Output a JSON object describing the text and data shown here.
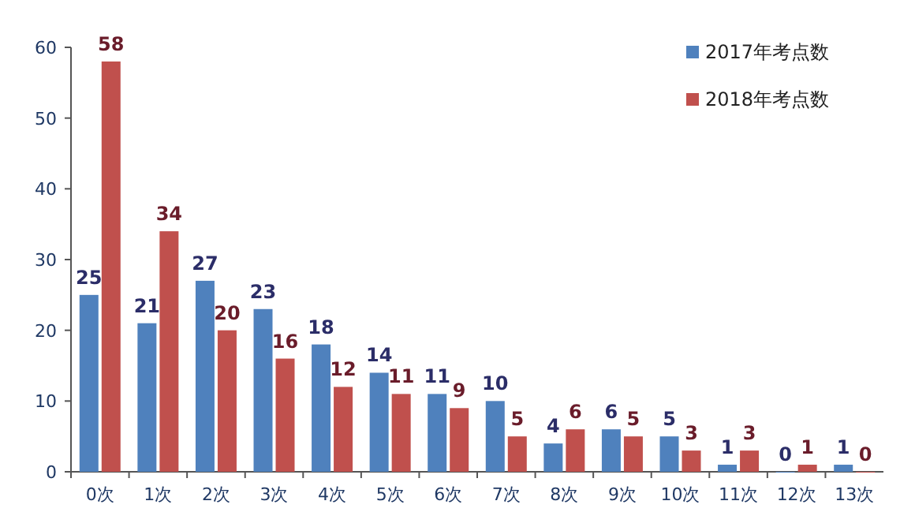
{
  "chart_data": {
    "type": "bar",
    "categories": [
      "0次",
      "1次",
      "2次",
      "3次",
      "4次",
      "5次",
      "6次",
      "7次",
      "8次",
      "9次",
      "10次",
      "11次",
      "12次",
      "13次"
    ],
    "series": [
      {
        "name": "2017年考点数",
        "color": "#4f81bd",
        "values": [
          25,
          21,
          27,
          23,
          18,
          14,
          11,
          10,
          4,
          6,
          5,
          1,
          0,
          1
        ]
      },
      {
        "name": "2018年考点数",
        "color": "#c0504d",
        "values": [
          58,
          34,
          20,
          16,
          12,
          11,
          9,
          5,
          6,
          5,
          3,
          3,
          1,
          0
        ]
      }
    ],
    "ylim": [
      0,
      60
    ],
    "yticks": [
      0,
      10,
      20,
      30,
      40,
      50,
      60
    ],
    "data_labels": true,
    "legend": "top right",
    "grid": false
  }
}
